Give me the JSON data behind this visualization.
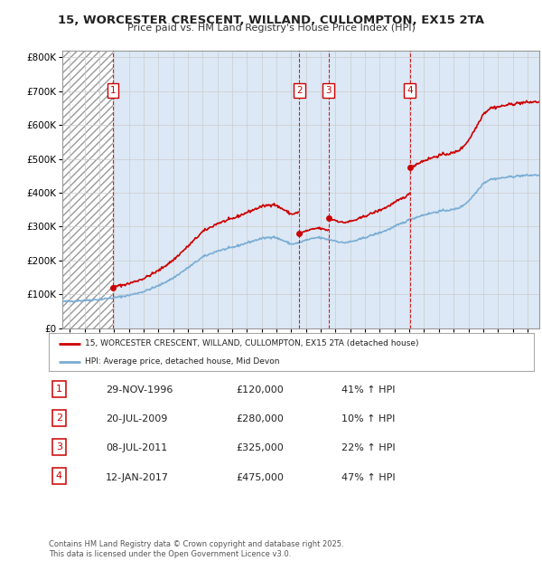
{
  "title": "15, WORCESTER CRESCENT, WILLAND, CULLOMPTON, EX15 2TA",
  "subtitle": "Price paid vs. HM Land Registry's House Price Index (HPI)",
  "legend_property": "15, WORCESTER CRESCENT, WILLAND, CULLOMPTON, EX15 2TA (detached house)",
  "legend_hpi": "HPI: Average price, detached house, Mid Devon",
  "footer": "Contains HM Land Registry data © Crown copyright and database right 2025.\nThis data is licensed under the Open Government Licence v3.0.",
  "sales": [
    {
      "num": 1,
      "date_dec": 1996.91,
      "date_str": "29-NOV-1996",
      "price": 120000,
      "pct": "41% ↑ HPI"
    },
    {
      "num": 2,
      "date_dec": 2009.55,
      "date_str": "20-JUL-2009",
      "price": 280000,
      "pct": "10% ↑ HPI"
    },
    {
      "num": 3,
      "date_dec": 2011.52,
      "date_str": "08-JUL-2011",
      "price": 325000,
      "pct": "22% ↑ HPI"
    },
    {
      "num": 4,
      "date_dec": 2017.03,
      "date_str": "12-JAN-2017",
      "price": 475000,
      "pct": "47% ↑ HPI"
    }
  ],
  "property_color": "#cc0000",
  "hpi_color": "#7aadd4",
  "dashed_line_color": "#cc0000",
  "ylim": [
    0,
    820000
  ],
  "yticks": [
    0,
    100000,
    200000,
    300000,
    400000,
    500000,
    600000,
    700000,
    800000
  ],
  "xlim_start": 1993.5,
  "xlim_end": 2025.8,
  "grid_color": "#cccccc",
  "plot_bg": "#dce8f5"
}
